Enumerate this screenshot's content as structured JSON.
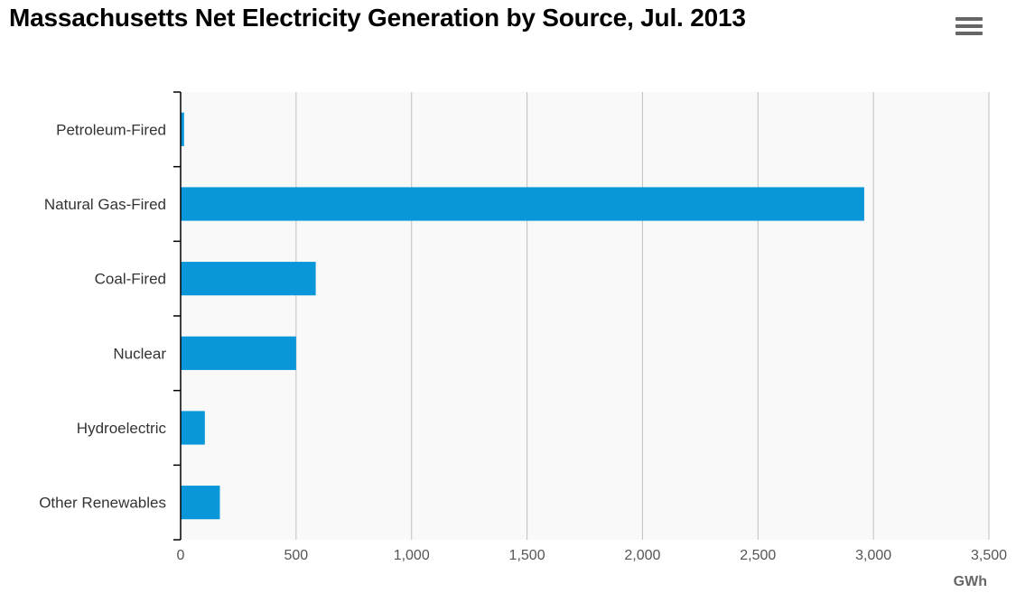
{
  "chart_data": {
    "type": "bar",
    "orientation": "horizontal",
    "title": "Massachusetts Net Electricity Generation by Source, Jul. 2013",
    "categories": [
      "Petroleum-Fired",
      "Natural Gas-Fired",
      "Coal-Fired",
      "Nuclear",
      "Hydroelectric",
      "Other Renewables"
    ],
    "values": [
      15,
      2960,
      585,
      500,
      105,
      170
    ],
    "unit": "GWh",
    "xlim": [
      0,
      3500
    ],
    "xticks": [
      0,
      500,
      1000,
      1500,
      2000,
      2500,
      3000,
      3500
    ],
    "xtick_labels": [
      "0",
      "500",
      "1,000",
      "1,500",
      "2,000",
      "2,500",
      "3,000",
      "3,500"
    ],
    "grid": "vertical",
    "bar_color": "#0a97d9",
    "plot_background": "#f9f9f9",
    "gridline_color": "#c0c0c0"
  },
  "menu": {
    "icon": "hamburger-menu-icon"
  }
}
